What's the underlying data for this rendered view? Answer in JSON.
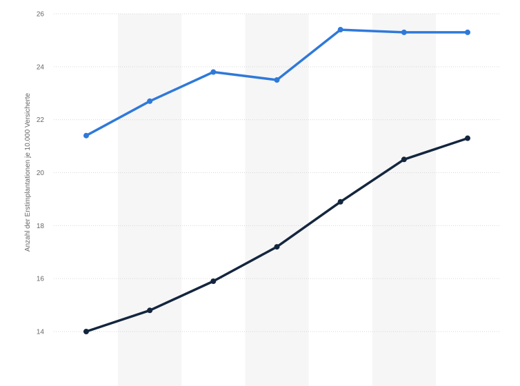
{
  "chart_data": {
    "type": "line",
    "xlabel": "",
    "ylabel": "Anzahl der Erstimplantationen je 10.000 Versicherte",
    "ylim": [
      14,
      26
    ],
    "yticks": [
      14,
      16,
      18,
      20,
      22,
      24,
      26
    ],
    "grid": true,
    "series": [
      {
        "color": "#2f79d9",
        "values": [
          21.4,
          22.7,
          23.8,
          23.5,
          25.4,
          25.3,
          25.3
        ]
      },
      {
        "color": "#14263e",
        "values": [
          14.0,
          14.8,
          15.9,
          17.2,
          18.9,
          20.5,
          21.3
        ]
      }
    ]
  }
}
